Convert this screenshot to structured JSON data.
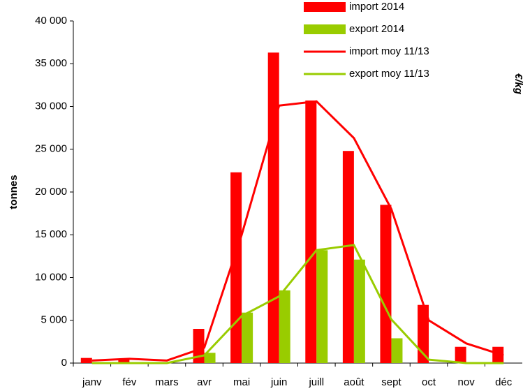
{
  "chart_data": {
    "type": "bar-line",
    "ylabel": "tonnes",
    "y2label": "€/kg",
    "categories": [
      "janv",
      "fév",
      "mars",
      "avr",
      "mai",
      "juin",
      "juill",
      "août",
      "sept",
      "oct",
      "nov",
      "déc"
    ],
    "series": [
      {
        "name": "import 2014",
        "kind": "bar",
        "color": "#ff0000",
        "values": [
          600,
          400,
          100,
          4000,
          22300,
          36300,
          30700,
          24800,
          18500,
          6800,
          1900,
          1900
        ]
      },
      {
        "name": "export 2014",
        "kind": "bar",
        "color": "#99cc00",
        "values": [
          0,
          0,
          0,
          1200,
          5900,
          8500,
          13200,
          12100,
          2900,
          0,
          0,
          0
        ]
      },
      {
        "name": "import moy 11/13",
        "kind": "line",
        "color": "#ff0000",
        "values": [
          300,
          500,
          300,
          1800,
          15000,
          30100,
          30600,
          26300,
          18000,
          5000,
          2300,
          900
        ]
      },
      {
        "name": "export moy 11/13",
        "kind": "line",
        "color": "#99cc00",
        "values": [
          0,
          0,
          0,
          900,
          5500,
          7800,
          13200,
          13800,
          5100,
          400,
          0,
          0
        ]
      }
    ],
    "ylim": [
      0,
      40000
    ],
    "yticks": [
      {
        "value": 0,
        "label": "0"
      },
      {
        "value": 5000,
        "label": "5 000"
      },
      {
        "value": 10000,
        "label": "10 000"
      },
      {
        "value": 15000,
        "label": "15 000"
      },
      {
        "value": 20000,
        "label": "20 000"
      },
      {
        "value": 25000,
        "label": "25 000"
      },
      {
        "value": 30000,
        "label": "30 000"
      },
      {
        "value": 35000,
        "label": "35 000"
      },
      {
        "value": 40000,
        "label": "40 000"
      }
    ]
  }
}
